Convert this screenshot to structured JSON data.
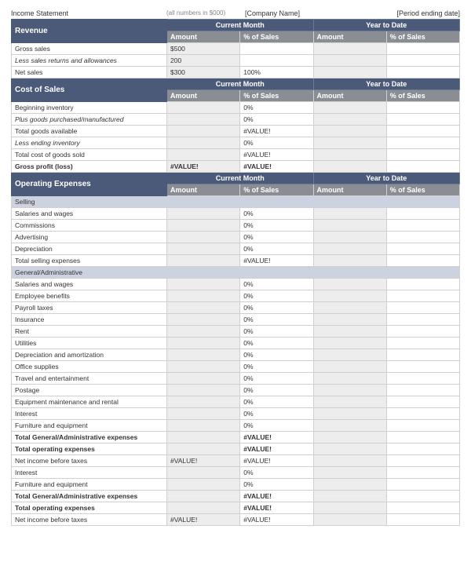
{
  "header": {
    "title": "Income Statement",
    "note": "(all numbers in $000)",
    "company": "[Company Name]",
    "period": "[Period ending date]"
  },
  "periods": {
    "current": "Current Month",
    "ytd": "Year to Date"
  },
  "cols": {
    "amount": "Amount",
    "pct": "% of Sales"
  },
  "sections": {
    "revenue": {
      "title": "Revenue",
      "rows": [
        {
          "label": "Gross sales",
          "amt1": "$500",
          "pct1": "",
          "amt2": "",
          "pct2": "",
          "style": ""
        },
        {
          "label": "Less sales returns and allowances",
          "amt1": "200",
          "pct1": "",
          "amt2": "",
          "pct2": "",
          "style": "italic"
        },
        {
          "label": "Net sales",
          "amt1": "$300",
          "pct1": "100%",
          "amt2": "",
          "pct2": "",
          "style": ""
        }
      ]
    },
    "cost": {
      "title": "Cost of Sales",
      "rows": [
        {
          "label": "Beginning inventory",
          "amt1": "",
          "pct1": "0%",
          "amt2": "",
          "pct2": "",
          "style": ""
        },
        {
          "label": "Plus goods purchased/manufactured",
          "amt1": "",
          "pct1": "0%",
          "amt2": "",
          "pct2": "",
          "style": "italic"
        },
        {
          "label": "Total goods available",
          "amt1": "",
          "pct1": "#VALUE!",
          "amt2": "",
          "pct2": "",
          "style": ""
        },
        {
          "label": "Less ending inventory",
          "amt1": "",
          "pct1": "0%",
          "amt2": "",
          "pct2": "",
          "style": "italic"
        },
        {
          "label": "Total cost of goods sold",
          "amt1": "",
          "pct1": "#VALUE!",
          "amt2": "",
          "pct2": "",
          "style": ""
        },
        {
          "label": "Gross profit (loss)",
          "amt1": "#VALUE!",
          "pct1": "#VALUE!",
          "amt2": "",
          "pct2": "",
          "style": "bold"
        }
      ]
    },
    "opex": {
      "title": "Operating Expenses",
      "sub_selling": "Selling",
      "selling_rows": [
        {
          "label": "Salaries and wages",
          "amt1": "",
          "pct1": "0%",
          "amt2": "",
          "pct2": "",
          "style": ""
        },
        {
          "label": "Commissions",
          "amt1": "",
          "pct1": "0%",
          "amt2": "",
          "pct2": "",
          "style": ""
        },
        {
          "label": "Advertising",
          "amt1": "",
          "pct1": "0%",
          "amt2": "",
          "pct2": "",
          "style": ""
        },
        {
          "label": "Depreciation",
          "amt1": "",
          "pct1": "0%",
          "amt2": "",
          "pct2": "",
          "style": ""
        },
        {
          "label": "Total selling expenses",
          "amt1": "",
          "pct1": "#VALUE!",
          "amt2": "",
          "pct2": "",
          "style": ""
        }
      ],
      "sub_ga": "General/Administrative",
      "ga_rows": [
        {
          "label": "Salaries and wages",
          "amt1": "",
          "pct1": "0%",
          "amt2": "",
          "pct2": "",
          "style": ""
        },
        {
          "label": "Employee benefits",
          "amt1": "",
          "pct1": "0%",
          "amt2": "",
          "pct2": "",
          "style": ""
        },
        {
          "label": "Payroll taxes",
          "amt1": "",
          "pct1": "0%",
          "amt2": "",
          "pct2": "",
          "style": ""
        },
        {
          "label": "Insurance",
          "amt1": "",
          "pct1": "0%",
          "amt2": "",
          "pct2": "",
          "style": ""
        },
        {
          "label": "Rent",
          "amt1": "",
          "pct1": "0%",
          "amt2": "",
          "pct2": "",
          "style": ""
        },
        {
          "label": "Utilities",
          "amt1": "",
          "pct1": "0%",
          "amt2": "",
          "pct2": "",
          "style": ""
        },
        {
          "label": "Depreciation and amortization",
          "amt1": "",
          "pct1": "0%",
          "amt2": "",
          "pct2": "",
          "style": ""
        },
        {
          "label": "Office supplies",
          "amt1": "",
          "pct1": "0%",
          "amt2": "",
          "pct2": "",
          "style": ""
        },
        {
          "label": "Travel and entertainment",
          "amt1": "",
          "pct1": "0%",
          "amt2": "",
          "pct2": "",
          "style": ""
        },
        {
          "label": "Postage",
          "amt1": "",
          "pct1": "0%",
          "amt2": "",
          "pct2": "",
          "style": ""
        },
        {
          "label": "Equipment maintenance and rental",
          "amt1": "",
          "pct1": "0%",
          "amt2": "",
          "pct2": "",
          "style": ""
        },
        {
          "label": "Interest",
          "amt1": "",
          "pct1": "0%",
          "amt2": "",
          "pct2": "",
          "style": ""
        },
        {
          "label": "Furniture and equipment",
          "amt1": "",
          "pct1": "0%",
          "amt2": "",
          "pct2": "",
          "style": ""
        },
        {
          "label": "Total General/Administrative expenses",
          "amt1": "",
          "pct1": "#VALUE!",
          "amt2": "",
          "pct2": "",
          "style": "bold"
        },
        {
          "label": "Total operating expenses",
          "amt1": "",
          "pct1": "#VALUE!",
          "amt2": "",
          "pct2": "",
          "style": "bold"
        },
        {
          "label": "Net income before taxes",
          "amt1": "#VALUE!",
          "pct1": "#VALUE!",
          "amt2": "",
          "pct2": "",
          "style": ""
        },
        {
          "label": "Interest",
          "amt1": "",
          "pct1": "0%",
          "amt2": "",
          "pct2": "",
          "style": ""
        },
        {
          "label": "Furniture and equipment",
          "amt1": "",
          "pct1": "0%",
          "amt2": "",
          "pct2": "",
          "style": ""
        },
        {
          "label": "Total General/Administrative expenses",
          "amt1": "",
          "pct1": "#VALUE!",
          "amt2": "",
          "pct2": "",
          "style": "bold"
        },
        {
          "label": "Total operating expenses",
          "amt1": "",
          "pct1": "#VALUE!",
          "amt2": "",
          "pct2": "",
          "style": "bold"
        },
        {
          "label": "Net income before taxes",
          "amt1": "#VALUE!",
          "pct1": "#VALUE!",
          "amt2": "",
          "pct2": "",
          "style": ""
        }
      ]
    }
  },
  "style": {
    "section_bg": "#4a5a78",
    "subheader_bg": "#8a8e94",
    "subsection_bg": "#cdd2e0",
    "amt_bg": "#ededed",
    "border": "#d0d0d0",
    "text": "#333333"
  }
}
